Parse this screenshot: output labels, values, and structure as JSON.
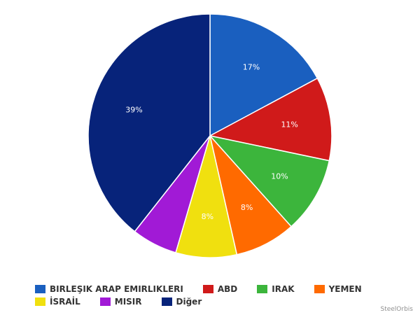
{
  "chart_data": {
    "type": "pie",
    "title": "",
    "slices": [
      {
        "label": "BIRLEŞIK ARAP EMIRLIKLERI",
        "value": 17,
        "value_label": "17%",
        "color": "#1a5fbf"
      },
      {
        "label": "ABD",
        "value": 11,
        "value_label": "11%",
        "color": "#d01a1a"
      },
      {
        "label": "IRAK",
        "value": 10,
        "value_label": "10%",
        "color": "#3cb53c"
      },
      {
        "label": "YEMEN",
        "value": 8,
        "value_label": "8%",
        "color": "#ff6a00"
      },
      {
        "label": "İSRAİL",
        "value": 8,
        "value_label": "8%",
        "color": "#f0e00f"
      },
      {
        "label": "MISIR",
        "value": 6,
        "value_label": "",
        "color": "#a11ad6"
      },
      {
        "label": "Diğer",
        "value": 39,
        "value_label": "39%",
        "color": "#07237a"
      }
    ],
    "legend_position": "bottom"
  },
  "credit": "SteelOrbis"
}
